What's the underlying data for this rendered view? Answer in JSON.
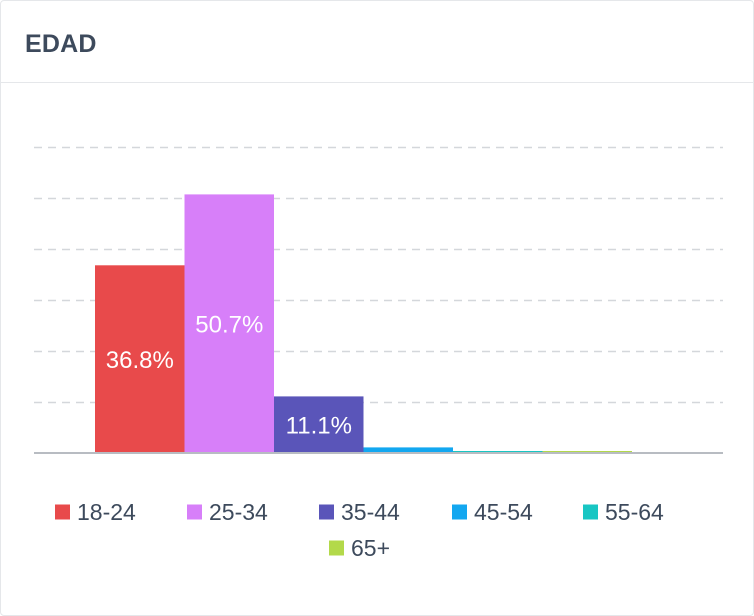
{
  "card": {
    "title": "EDAD"
  },
  "chart_data": {
    "type": "bar",
    "title": "EDAD",
    "categories": [
      "18-24",
      "25-34",
      "35-44",
      "45-54",
      "55-64",
      "65+"
    ],
    "values": [
      36.8,
      50.7,
      11.1,
      1.1,
      0.4,
      0.4
    ],
    "data_labels": [
      "36.8%",
      "50.7%",
      "11.1%",
      "",
      "",
      ""
    ],
    "colors": [
      "#e84a4b",
      "#d77ff9",
      "#5a55b9",
      "#13a7f0",
      "#18c6c3",
      "#b3d94a"
    ],
    "ylim": [
      0,
      60
    ],
    "grid": true,
    "legend": {
      "position": "bottom",
      "items": [
        "18-24",
        "25-34",
        "35-44",
        "45-54",
        "55-64",
        "65+"
      ]
    }
  }
}
